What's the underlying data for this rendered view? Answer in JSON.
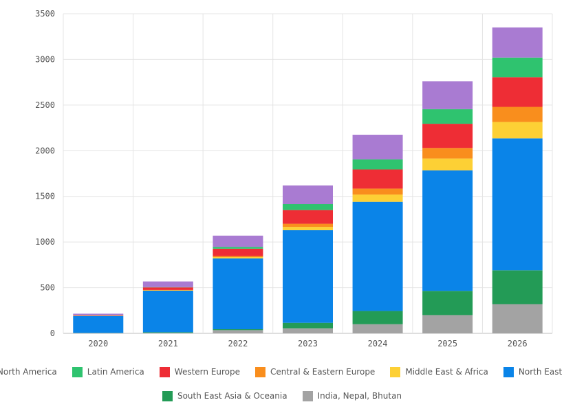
{
  "chart_data": {
    "type": "bar",
    "stacked": true,
    "title": "",
    "xlabel": "",
    "ylabel": "",
    "ylim": [
      0,
      3500
    ],
    "yticks": [
      0,
      500,
      1000,
      1500,
      2000,
      2500,
      3000,
      3500
    ],
    "grid": true,
    "legend_position": "bottom",
    "categories": [
      "2020",
      "2021",
      "2022",
      "2023",
      "2024",
      "2025",
      "2026"
    ],
    "series": [
      {
        "name": "India, Nepal, Bhutan",
        "color": "#a3a3a3",
        "values": [
          3,
          5,
          35,
          55,
          100,
          200,
          320
        ]
      },
      {
        "name": "South East Asia & Oceania",
        "color": "#239b56",
        "values": [
          2,
          7,
          10,
          60,
          145,
          265,
          370
        ]
      },
      {
        "name": "North East Asia",
        "color": "#0a84e8",
        "values": [
          185,
          455,
          775,
          1015,
          1195,
          1320,
          1445
        ]
      },
      {
        "name": "Middle East & Africa",
        "color": "#fdd035",
        "values": [
          2,
          4,
          15,
          35,
          80,
          130,
          180
        ]
      },
      {
        "name": "Central & Eastern Europe",
        "color": "#f98e1d",
        "values": [
          2,
          4,
          12,
          35,
          65,
          115,
          165
        ]
      },
      {
        "name": "Western Europe",
        "color": "#ee2d35",
        "values": [
          5,
          28,
          80,
          150,
          210,
          265,
          325
        ]
      },
      {
        "name": "Latin America",
        "color": "#2fc36f",
        "values": [
          1,
          3,
          20,
          65,
          110,
          160,
          215
        ]
      },
      {
        "name": "North America",
        "color": "#a97bd2",
        "values": [
          15,
          62,
          123,
          205,
          270,
          305,
          330
        ]
      }
    ]
  },
  "legend": {
    "row1": [
      {
        "label": "North America",
        "color": "#a97bd2"
      },
      {
        "label": "Latin America",
        "color": "#2fc36f"
      },
      {
        "label": "Western Europe",
        "color": "#ee2d35"
      },
      {
        "label": "Central & Eastern Europe",
        "color": "#f98e1d"
      },
      {
        "label": "Middle East & Africa",
        "color": "#fdd035"
      },
      {
        "label": "North East Asia",
        "color": "#0a84e8"
      }
    ],
    "row2": [
      {
        "label": "South East Asia & Oceania",
        "color": "#239b56"
      },
      {
        "label": "India, Nepal, Bhutan",
        "color": "#a3a3a3"
      }
    ]
  }
}
